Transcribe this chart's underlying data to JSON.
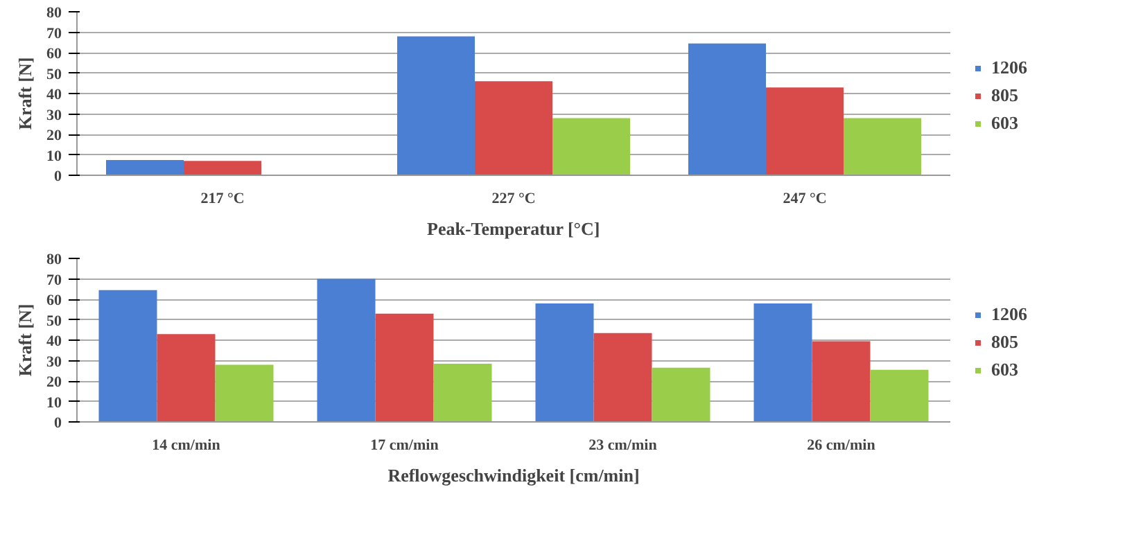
{
  "chart_data": [
    {
      "type": "bar",
      "xlabel": "Peak-Temperatur [°C]",
      "ylabel": "Kraft [N]",
      "categories": [
        "217 °C",
        "227 °C",
        "247 °C"
      ],
      "ylim": [
        0,
        80
      ],
      "yticks": [
        0,
        10,
        20,
        30,
        40,
        50,
        60,
        70,
        80
      ],
      "grid": "y",
      "legend": "right",
      "series": [
        {
          "name": "1206",
          "color": "#4a7fd4",
          "values": [
            7.5,
            68,
            64.5
          ]
        },
        {
          "name": "805",
          "color": "#d94a4a",
          "values": [
            7,
            46,
            43
          ]
        },
        {
          "name": "603",
          "color": "#9acd4a",
          "values": [
            null,
            28,
            28
          ]
        }
      ]
    },
    {
      "type": "bar",
      "xlabel": "Reflowgeschwindigkeit [cm/min]",
      "ylabel": "Kraft [N]",
      "categories": [
        "14 cm/min",
        "17 cm/min",
        "23 cm/min",
        "26 cm/min"
      ],
      "ylim": [
        0,
        80
      ],
      "yticks": [
        0,
        10,
        20,
        30,
        40,
        50,
        60,
        70,
        80
      ],
      "grid": "y",
      "legend": "right",
      "series": [
        {
          "name": "1206",
          "color": "#4a7fd4",
          "values": [
            64.5,
            70,
            58,
            58
          ]
        },
        {
          "name": "805",
          "color": "#d94a4a",
          "values": [
            43,
            53,
            43.5,
            39.5
          ]
        },
        {
          "name": "603",
          "color": "#9acd4a",
          "values": [
            28,
            28.5,
            26.5,
            25.5
          ]
        }
      ]
    }
  ]
}
